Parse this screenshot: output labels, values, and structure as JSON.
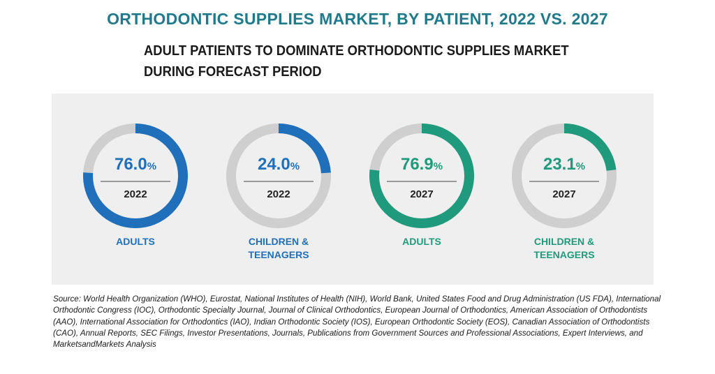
{
  "title": "ORTHODONTIC SUPPLIES MARKET, BY PATIENT, 2022 VS. 2027",
  "subtitle": "ADULT PATIENTS TO DOMINATE ORTHODONTIC SUPPLIES MARKET DURING FORECAST PERIOD",
  "source": "Source: World Health Organization (WHO), Eurostat, National Institutes of Health (NIH), World Bank, United States Food and Drug Administration (US FDA), International Orthodontic Congress (IOC), Orthodontic Specialty Journal, Journal of Clinical Orthodontics, European Journal of Orthodontics, American Association of Orthodontists (AAO), International Association for Orthodontics (IAO), Indian Orthodontic Society (IOS), European Orthodontic Society (EOS), Canadian Association of Orthodontists (CAO), Annual Reports, SEC Filings, Investor Presentations, Journals, Publications from Government Sources and Professional Associations, Expert Interviews, and MarketsandMarkets Analysis",
  "colors": {
    "blue": "#1f6fba",
    "teal": "#1f9a7c",
    "track": "#cfcfcf",
    "title": "#1f7a8c"
  },
  "chart_data": [
    {
      "type": "pie",
      "category": "ADULTS",
      "year": "2022",
      "value": 76.0,
      "value_label": "76.0",
      "unit": "%",
      "color": "#1f6fba"
    },
    {
      "type": "pie",
      "category": "CHILDREN & TEENAGERS",
      "year": "2022",
      "value": 24.0,
      "value_label": "24.0",
      "unit": "%",
      "color": "#1f6fba"
    },
    {
      "type": "pie",
      "category": "ADULTS",
      "year": "2027",
      "value": 76.9,
      "value_label": "76.9",
      "unit": "%",
      "color": "#1f9a7c"
    },
    {
      "type": "pie",
      "category": "CHILDREN & TEENAGERS",
      "year": "2027",
      "value": 23.1,
      "value_label": "23.1",
      "unit": "%",
      "color": "#1f9a7c"
    }
  ]
}
